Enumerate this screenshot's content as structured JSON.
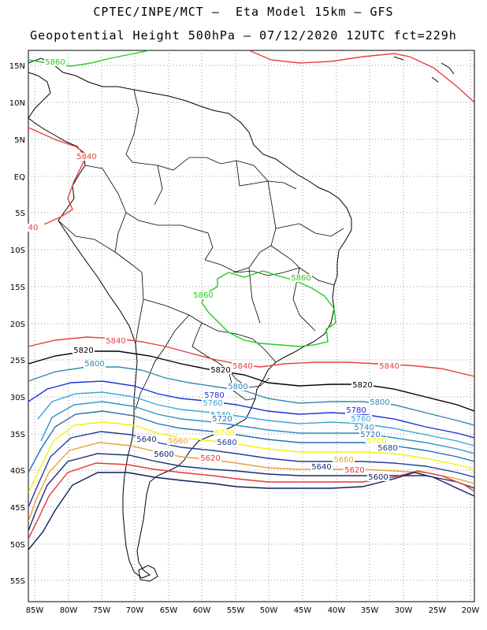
{
  "title_line1": "CPTEC/INPE/MCT –  Eta Model 15km – GFS",
  "title_line2": "Geopotential Height 500hPa – 07/12/2020 12UTC fct=229h",
  "y_ticks": [
    "15N",
    "10N",
    "5N",
    "EQ",
    "5S",
    "10S",
    "15S",
    "20S",
    "25S",
    "30S",
    "35S",
    "40S",
    "45S",
    "50S",
    "55S"
  ],
  "x_ticks": [
    "85W",
    "80W",
    "75W",
    "70W",
    "65W",
    "60W",
    "55W",
    "50W",
    "45W",
    "40W",
    "35W",
    "30W",
    "25W",
    "20W"
  ],
  "colors": {
    "c5600": "#0b1f63",
    "c5620": "#e8353a",
    "c5640": "#1b2d7a",
    "c5660": "#e8a03a",
    "c5680": "#1f3f9b",
    "c5700": "#f2f20a",
    "c5720": "#2a6fb0",
    "c5740": "#2e8fc8",
    "c5760": "#3aa6d8",
    "c5780": "#1a2ee0",
    "c5800": "#2f8ab0",
    "c5820": "#000000",
    "c5840": "#e84040",
    "c5860": "#22cc22"
  },
  "labels": {
    "l5860_top": "5860",
    "l5840_w": "5840",
    "l40_edge": "40",
    "l5860_br_n": "5860",
    "l5860_br_w": "5860",
    "l5840_a": "5840",
    "l5820_a": "5820",
    "l5800_a": "5800",
    "l5820_b": "5820",
    "l5840_b": "5840",
    "l5840_c": "5840",
    "l5820_c": "5820",
    "l5800_b": "5800",
    "l5780_a": "5780",
    "l5760_a": "5760",
    "l5740_a": "5740",
    "l5720_a": "5720",
    "l5700_a": "5700",
    "l5680_a": "5680",
    "l5640_a": "5640",
    "l5660_a": "5660",
    "l5600_a": "5600",
    "l5620_a": "5620",
    "l5800_c": "5800",
    "l5780_b": "5780",
    "l5760_b": "5760",
    "l5740_b": "5740",
    "l5720_b": "5720",
    "l5700_b": "5700",
    "l5680_b": "5680",
    "l5660_b": "5660",
    "l5640_b": "5640",
    "l5620_b": "5620",
    "l5600_b": "5600"
  }
}
